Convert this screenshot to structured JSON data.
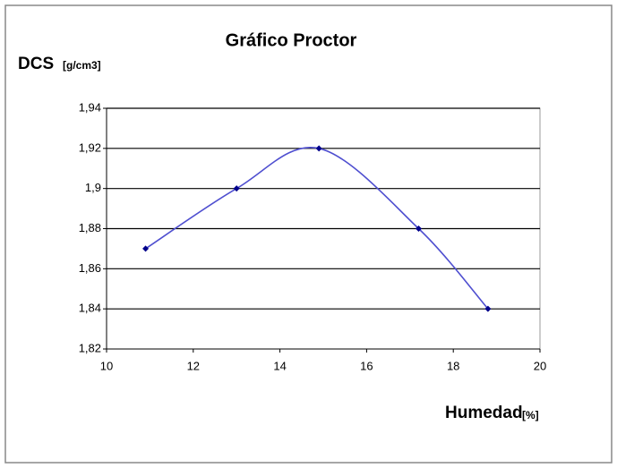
{
  "chart_data": {
    "type": "line",
    "smooth": true,
    "title": "Gráfico Proctor",
    "y_label": "DCS",
    "y_unit": "[g/cm3]",
    "x_label": "Humedad",
    "x_unit": "[%]",
    "x": [
      10.9,
      13.0,
      14.9,
      17.2,
      18.8
    ],
    "series": [
      {
        "name": "DCS",
        "color": "#4f4fd0",
        "marker_color": "#00008b",
        "values": [
          1.87,
          1.9,
          1.92,
          1.88,
          1.84
        ]
      }
    ],
    "xlim": [
      10,
      20
    ],
    "xticks": [
      10,
      12,
      14,
      16,
      18,
      20
    ],
    "ylim": [
      1.82,
      1.94
    ],
    "yticks": [
      {
        "value": 1.82,
        "label": "1,82"
      },
      {
        "value": 1.84,
        "label": "1,84"
      },
      {
        "value": 1.86,
        "label": "1,86"
      },
      {
        "value": 1.88,
        "label": "1,88"
      },
      {
        "value": 1.9,
        "label": "1,9"
      },
      {
        "value": 1.92,
        "label": "1,92"
      },
      {
        "value": 1.94,
        "label": "1,94"
      }
    ],
    "grid": true
  }
}
